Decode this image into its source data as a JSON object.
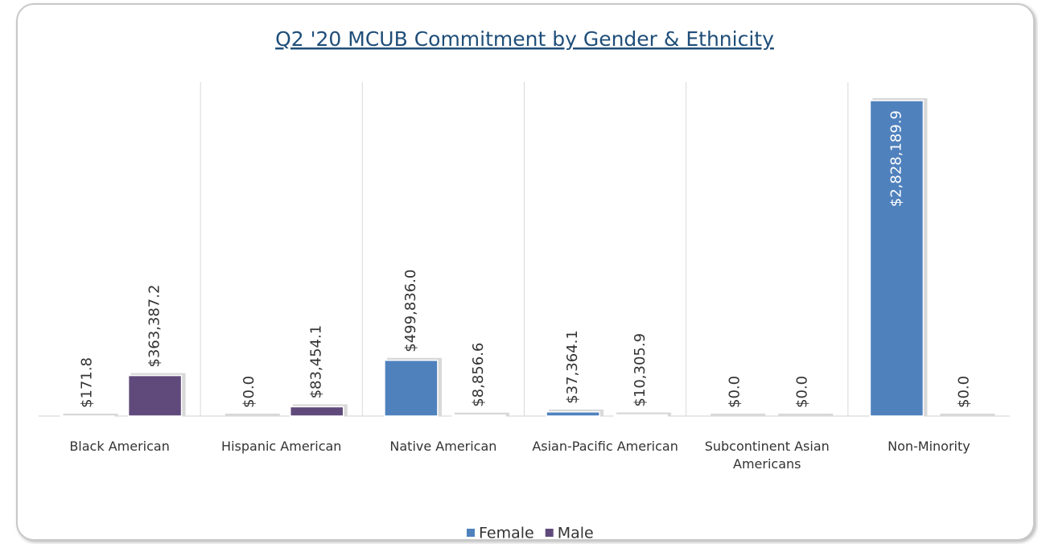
{
  "chart_data": {
    "type": "bar",
    "title": "Q2 '20 MCUB Commitment by Gender & Ethnicity",
    "categories": [
      "Black American",
      "Hispanic American",
      "Native American",
      "Asian-Pacific American",
      "Subcontinent Asian Americans",
      "Non-Minority"
    ],
    "series": [
      {
        "name": "Female",
        "color": "#4f81bd",
        "values": [
          171.8,
          0,
          499836.0,
          37364.1,
          0,
          2828189.9
        ],
        "value_labels": [
          "$171.8",
          "$0.0",
          "$499,836.0",
          "$37,364.1",
          "$0.0",
          "$2,828,189.9"
        ]
      },
      {
        "name": "Male",
        "color": "#604a7b",
        "values": [
          363387.2,
          83454.1,
          8856.6,
          10305.9,
          0,
          0
        ],
        "value_labels": [
          "$363,387.2",
          "$83,454.1",
          "$8,856.6",
          "$10,305.9",
          "$0.0",
          "$0.0"
        ]
      }
    ],
    "legend": "bottom"
  }
}
